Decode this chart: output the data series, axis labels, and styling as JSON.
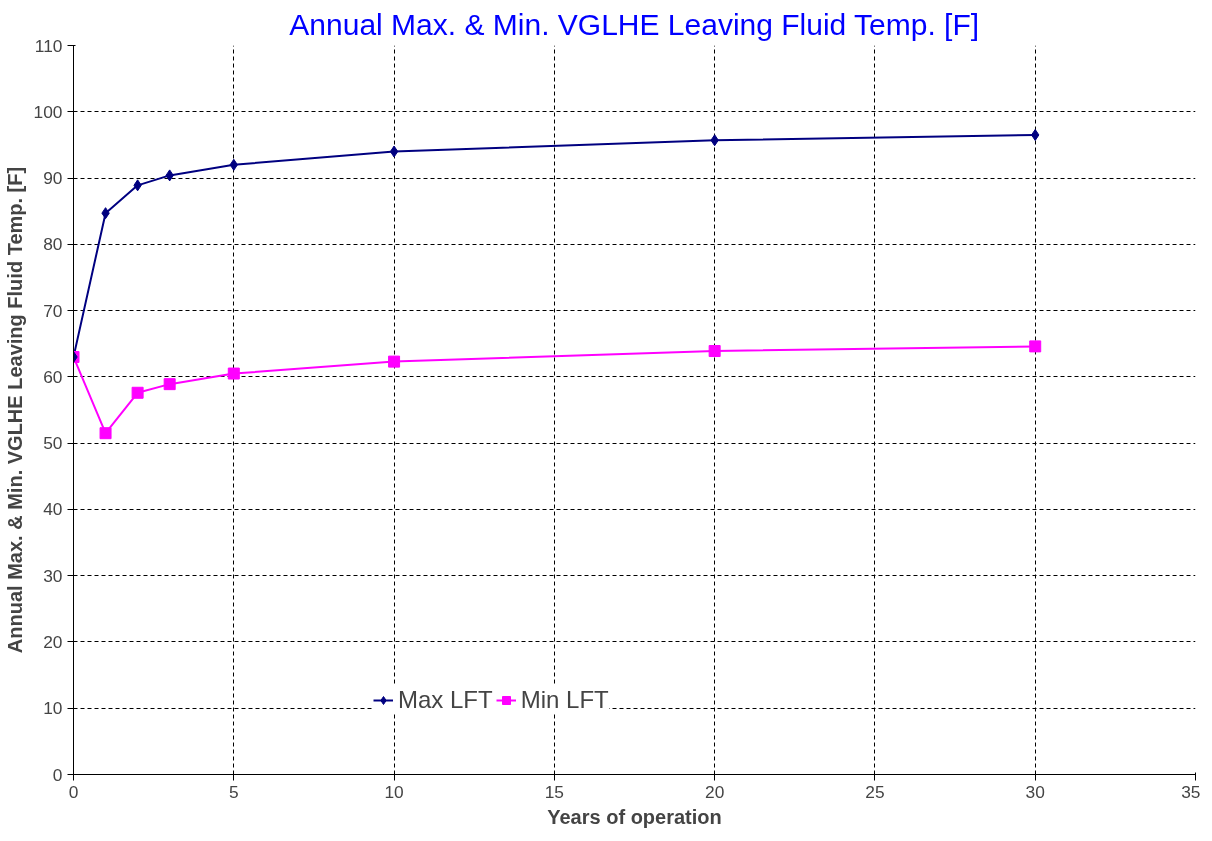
{
  "chart_data": {
    "type": "line",
    "title": "Annual Max. & Min. VGLHE Leaving Fluid Temp. [F]",
    "xlabel": "Years of operation",
    "ylabel": "Annual Max. & Min. VGLHE Leaving Fluid Temp. [F]",
    "xlim": [
      0,
      35
    ],
    "xticks": [
      0,
      5,
      10,
      15,
      20,
      25,
      30,
      35
    ],
    "ylim": [
      0,
      110
    ],
    "yticks": [
      0,
      10,
      20,
      30,
      40,
      50,
      60,
      70,
      80,
      90,
      100,
      110
    ],
    "grid": true,
    "legend": "bottom",
    "series": [
      {
        "name": "Max LFT",
        "color": "#000080",
        "marker": "diamond",
        "x": [
          0,
          1,
          2,
          3,
          5,
          10,
          20,
          30
        ],
        "values": [
          63,
          84.7,
          88.9,
          90.4,
          92,
          94,
          95.7,
          96.5
        ]
      },
      {
        "name": "Min LFT",
        "color": "#ff00ff",
        "marker": "square",
        "x": [
          0,
          1,
          2,
          3,
          5,
          10,
          20,
          30
        ],
        "values": [
          63,
          51.5,
          57.6,
          58.9,
          60.5,
          62.3,
          63.9,
          64.6
        ]
      }
    ]
  }
}
